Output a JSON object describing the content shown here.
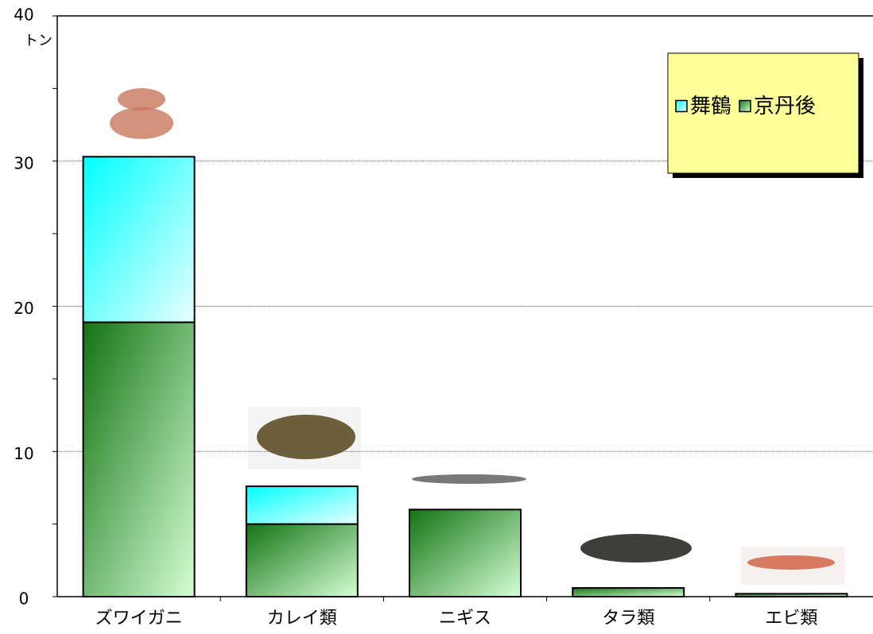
{
  "chart_data": {
    "type": "stacked_bar",
    "y_label": "トン",
    "categories": [
      "ズワイガニ",
      "カレイ類",
      "ニギス",
      "タラ類",
      "エビ類"
    ],
    "series": [
      {
        "name": "舞鶴",
        "color": "#00ffff",
        "values": [
          11.4,
          2.6,
          0,
          0,
          0
        ]
      },
      {
        "name": "京丹後",
        "color": "#1a7a1a",
        "values": [
          18.9,
          5.0,
          6.0,
          0.6,
          0.2
        ]
      }
    ],
    "ylim": [
      0,
      40
    ],
    "yticks": [
      0,
      10,
      20,
      30,
      40
    ],
    "yminorticks": [
      5,
      15,
      25,
      35
    ],
    "grid": true,
    "legend": "top-right"
  }
}
